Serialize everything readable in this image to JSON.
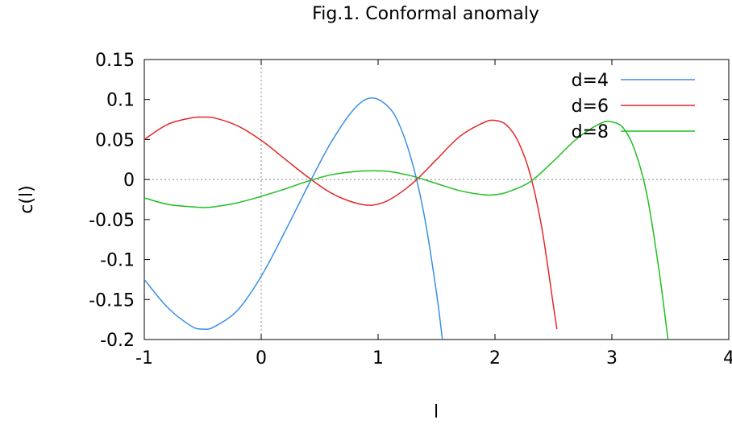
{
  "chart_data": {
    "type": "line",
    "title": "Fig.1. Conformal anomaly",
    "xlabel": "l",
    "ylabel": "c(l)",
    "xlim": [
      -1,
      4
    ],
    "ylim": [
      -0.2,
      0.15
    ],
    "x_ticks": [
      -1,
      0,
      1,
      2,
      3,
      4
    ],
    "x_tick_labels": [
      "-1",
      "0",
      "1",
      "2",
      "3",
      "4"
    ],
    "y_ticks": [
      -0.2,
      -0.15,
      -0.1,
      -0.05,
      0,
      0.05,
      0.1,
      0.15
    ],
    "y_tick_labels": [
      "-0.2",
      "-0.15",
      "-0.1",
      "-0.05",
      "0",
      "0.05",
      "0.1",
      "0.15"
    ],
    "grid": false,
    "zero_lines": true,
    "legend_position": "top-right",
    "series": [
      {
        "name": "d=4",
        "color": "#3a8ee6",
        "x": [
          -1.0,
          -0.8,
          -0.6,
          -0.5,
          -0.4,
          -0.2,
          0.0,
          0.2,
          0.4,
          0.6,
          0.8,
          0.95,
          1.1,
          1.2,
          1.3,
          1.4,
          1.5,
          1.55
        ],
        "y": [
          -0.125,
          -0.16,
          -0.183,
          -0.187,
          -0.184,
          -0.163,
          -0.121,
          -0.066,
          -0.008,
          0.047,
          0.089,
          0.102,
          0.089,
          0.062,
          0.017,
          -0.049,
          -0.142,
          -0.2
        ]
      },
      {
        "name": "d=6",
        "color": "#e62626",
        "x": [
          -1.0,
          -0.8,
          -0.6,
          -0.5,
          -0.4,
          -0.2,
          0.0,
          0.2,
          0.4,
          0.6,
          0.8,
          0.95,
          1.1,
          1.3,
          1.5,
          1.7,
          1.9,
          2.0,
          2.1,
          2.2,
          2.3,
          2.4,
          2.5,
          2.53
        ],
        "y": [
          0.05,
          0.069,
          0.077,
          0.078,
          0.077,
          0.067,
          0.049,
          0.026,
          0.003,
          -0.017,
          -0.029,
          -0.032,
          -0.025,
          -0.004,
          0.025,
          0.054,
          0.071,
          0.074,
          0.068,
          0.047,
          0.007,
          -0.06,
          -0.158,
          -0.187
        ]
      },
      {
        "name": "d=8",
        "color": "#1fbf1f",
        "x": [
          -1.0,
          -0.8,
          -0.6,
          -0.5,
          -0.4,
          -0.2,
          0.0,
          0.2,
          0.4,
          0.6,
          0.8,
          0.95,
          1.1,
          1.3,
          1.5,
          1.7,
          1.9,
          2.0,
          2.1,
          2.3,
          2.5,
          2.7,
          2.9,
          3.0,
          3.1,
          3.2,
          3.3,
          3.4,
          3.48
        ],
        "y": [
          -0.023,
          -0.031,
          -0.034,
          -0.035,
          -0.034,
          -0.029,
          -0.021,
          -0.012,
          -0.002,
          0.006,
          0.01,
          0.011,
          0.01,
          0.004,
          -0.005,
          -0.014,
          -0.019,
          -0.019,
          -0.016,
          -0.003,
          0.023,
          0.051,
          0.07,
          0.072,
          0.064,
          0.035,
          -0.019,
          -0.11,
          -0.2
        ]
      }
    ]
  }
}
